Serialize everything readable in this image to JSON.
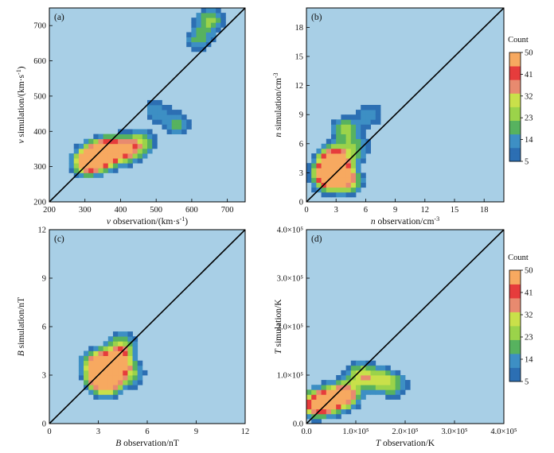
{
  "colors": {
    "background": "#a8cfe6",
    "colormap": [
      "#2c6fb3",
      "#3d8fc4",
      "#57b25f",
      "#9bd34a",
      "#c9e04a",
      "#e88a6f",
      "#e63c3c",
      "#f7a960"
    ],
    "identity_line": "#000000"
  },
  "colorbar": {
    "title": "Count",
    "ticks": [
      5,
      14,
      23,
      32,
      41,
      50
    ]
  },
  "chart_data": [
    {
      "type": "heatmap",
      "panel_label": "(a)",
      "xlabel_italic": "v",
      "xlabel": "observation/(km·s",
      "ylabel_italic": "v",
      "ylabel": "simulation/(km·s",
      "unit_sup": "-1",
      "unit_close": ")",
      "xlim": [
        200,
        750
      ],
      "ylim": [
        200,
        750
      ],
      "xticks": [
        "200",
        "300",
        "400",
        "500",
        "600",
        "700"
      ],
      "yticks": [
        "200",
        "300",
        "400",
        "500",
        "600",
        "700"
      ],
      "xtick_values": [
        200,
        300,
        400,
        500,
        600,
        700
      ],
      "ytick_values": [
        200,
        300,
        400,
        500,
        600,
        700
      ],
      "identity_line": true,
      "hotspots": [
        {
          "x": 320,
          "y": 320,
          "count": 50
        },
        {
          "x": 350,
          "y": 340,
          "count": 45
        },
        {
          "x": 380,
          "y": 345,
          "count": 40
        },
        {
          "x": 420,
          "y": 350,
          "count": 30
        },
        {
          "x": 300,
          "y": 310,
          "count": 25
        },
        {
          "x": 460,
          "y": 370,
          "count": 22
        },
        {
          "x": 560,
          "y": 420,
          "count": 18
        },
        {
          "x": 650,
          "y": 715,
          "count": 24
        },
        {
          "x": 620,
          "y": 660,
          "count": 18
        },
        {
          "x": 500,
          "y": 460,
          "count": 14
        }
      ],
      "colorbar": false
    },
    {
      "type": "heatmap",
      "panel_label": "(b)",
      "xlabel_italic": "n",
      "xlabel": "observation/cm",
      "ylabel_italic": "n",
      "ylabel": "simulation/cm",
      "unit_sup": "-3",
      "unit_close": "",
      "xlim": [
        0,
        20
      ],
      "ylim": [
        0,
        20
      ],
      "xticks": [
        "0",
        "3",
        "6",
        "9",
        "12",
        "15",
        "18"
      ],
      "yticks": [
        "0",
        "3",
        "6",
        "9",
        "12",
        "15",
        "18"
      ],
      "xtick_values": [
        0,
        3,
        6,
        9,
        12,
        15,
        18
      ],
      "ytick_values": [
        0,
        3,
        6,
        9,
        12,
        15,
        18
      ],
      "identity_line": true,
      "hotspots": [
        {
          "x": 2.2,
          "y": 2.5,
          "count": 50
        },
        {
          "x": 2.8,
          "y": 4.5,
          "count": 45
        },
        {
          "x": 2.5,
          "y": 3.5,
          "count": 44
        },
        {
          "x": 3.5,
          "y": 2.8,
          "count": 35
        },
        {
          "x": 4.0,
          "y": 7.5,
          "count": 24
        },
        {
          "x": 5.0,
          "y": 5.5,
          "count": 20
        },
        {
          "x": 6.5,
          "y": 9.0,
          "count": 14
        },
        {
          "x": 4.5,
          "y": 2.0,
          "count": 20
        }
      ],
      "colorbar": true
    },
    {
      "type": "heatmap",
      "panel_label": "(c)",
      "xlabel_italic": "B",
      "xlabel": "observation/nT",
      "ylabel_italic": "B",
      "ylabel": "simulation/nT",
      "unit_sup": "",
      "unit_close": "",
      "xlim": [
        0,
        12
      ],
      "ylim": [
        0,
        12
      ],
      "xticks": [
        "0",
        "3",
        "6",
        "9",
        "12"
      ],
      "yticks": [
        "0",
        "3",
        "6",
        "9",
        "12"
      ],
      "xtick_values": [
        0,
        3,
        6,
        9,
        12
      ],
      "ytick_values": [
        0,
        3,
        6,
        9,
        12
      ],
      "identity_line": true,
      "hotspots": [
        {
          "x": 3.2,
          "y": 3.0,
          "count": 50
        },
        {
          "x": 3.8,
          "y": 3.6,
          "count": 46
        },
        {
          "x": 3.5,
          "y": 2.5,
          "count": 42
        },
        {
          "x": 4.2,
          "y": 4.0,
          "count": 40
        },
        {
          "x": 2.8,
          "y": 3.8,
          "count": 30
        },
        {
          "x": 4.5,
          "y": 5.0,
          "count": 20
        },
        {
          "x": 5.0,
          "y": 3.0,
          "count": 20
        }
      ],
      "colorbar": false
    },
    {
      "type": "heatmap",
      "panel_label": "(d)",
      "xlabel_italic": "T",
      "xlabel": "observation/K",
      "ylabel_italic": "T",
      "ylabel": "simulation/K",
      "unit_sup": "",
      "unit_close": "",
      "xlim": [
        0,
        400000
      ],
      "ylim": [
        0,
        400000
      ],
      "xticks": [
        "0.0",
        "1.0×10⁵",
        "2.0×10⁵",
        "3.0×10⁵",
        "4.0×10⁵"
      ],
      "yticks": [
        "0.0",
        "1.0×10⁵",
        "2.0×10⁵",
        "3.0×10⁵",
        "4.0×10⁵"
      ],
      "xtick_values": [
        0,
        100000,
        200000,
        300000,
        400000
      ],
      "ytick_values": [
        0,
        100000,
        200000,
        300000,
        400000
      ],
      "identity_line": true,
      "hotspots": [
        {
          "x": 20000,
          "y": 40000,
          "count": 50
        },
        {
          "x": 50000,
          "y": 50000,
          "count": 45
        },
        {
          "x": 80000,
          "y": 60000,
          "count": 40
        },
        {
          "x": 110000,
          "y": 100000,
          "count": 30
        },
        {
          "x": 150000,
          "y": 90000,
          "count": 24
        },
        {
          "x": 180000,
          "y": 80000,
          "count": 18
        }
      ],
      "colorbar": true
    }
  ]
}
